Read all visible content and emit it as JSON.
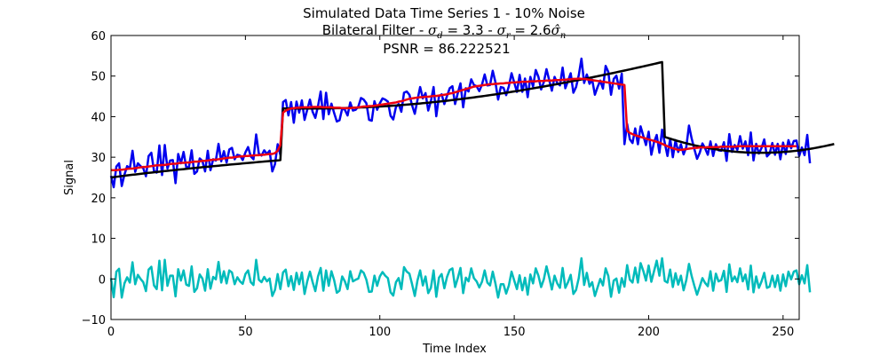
{
  "chart_data": {
    "type": "line",
    "title": "Simulated Data Time Series 1 - 10% Noise",
    "subtitle": {
      "prefix": "Bilateral Filter - ",
      "sigma_d_symbol": "σ",
      "sigma_d_sub": "d",
      "sigma_d_value": " = 3.3 - ",
      "sigma_r_symbol": "σ",
      "sigma_r_sub": "r",
      "sigma_r_value": " = 2.6",
      "sigma_n_symbol": "σ̂",
      "sigma_n_sub": "n"
    },
    "annotation": "PSNR = 86.222521",
    "xlabel": "Time Index",
    "ylabel": "Signal",
    "xlim": [
      0,
      256
    ],
    "ylim": [
      -10,
      60
    ],
    "xticks": [
      "0",
      "50",
      "100",
      "150",
      "200",
      "250"
    ],
    "yticks": [
      "−10",
      "0",
      "10",
      "20",
      "30",
      "40",
      "50",
      "60"
    ],
    "grid": false,
    "series": [
      {
        "color": "#0000ee",
        "role": "noisy",
        "values": [
          25.4,
          22.6,
          27.7,
          28.5,
          22.9,
          25.7,
          27.8,
          27.2,
          31.6,
          26.4,
          28.5,
          27.8,
          27.3,
          25.3,
          30.3,
          31.1,
          26.6,
          26.2,
          32.9,
          25.6,
          33.0,
          27.2,
          29.2,
          29.3,
          23.6,
          30.8,
          28.5,
          31.3,
          27.5,
          27.6,
          31.7,
          25.9,
          26.5,
          29.7,
          29.1,
          26.5,
          31.6,
          26.8,
          29.5,
          29.2,
          33.3,
          29.0,
          31.5,
          28.7,
          31.9,
          32.3,
          29.5,
          30.6,
          30.4,
          29.3,
          31.2,
          32.5,
          30.2,
          29.5,
          35.6,
          30.9,
          30.4,
          31.7,
          30.8,
          31.6,
          26.5,
          28.3,
          33.2,
          30.6,
          43.6,
          44.1,
          40.3,
          43.6,
          38.5,
          43.7,
          41.0,
          44.0,
          39.2,
          41.7,
          44.2,
          41.2,
          39.7,
          42.6,
          46.2,
          39.4,
          45.9,
          40.6,
          43.2,
          40.9,
          38.8,
          39.1,
          42.0,
          41.7,
          40.3,
          43.5,
          41.5,
          41.7,
          42.5,
          44.6,
          44.2,
          43.3,
          39.2,
          39.0,
          43.8,
          41.7,
          43.3,
          44.5,
          44.2,
          43.7,
          40.2,
          39.3,
          42.4,
          43.1,
          41.2,
          45.9,
          46.2,
          45.4,
          42.8,
          40.7,
          44.1,
          47.3,
          44.5,
          45.8,
          41.5,
          43.8,
          47.3,
          40.1,
          45.0,
          45.5,
          43.1,
          45.1,
          47.0,
          47.5,
          43.1,
          45.8,
          48.2,
          42.3,
          47.0,
          46.2,
          49.2,
          47.8,
          47.5,
          46.3,
          47.9,
          50.4,
          47.7,
          47.8,
          51.3,
          48.5,
          44.2,
          47.3,
          47.1,
          45.3,
          47.5,
          50.7,
          48.4,
          46.1,
          50.3,
          46.1,
          49.4,
          44.8,
          49.8,
          47.4,
          51.5,
          49.8,
          46.7,
          48.5,
          51.7,
          49.0,
          46.4,
          49.8,
          48.3,
          47.7,
          52.1,
          47.0,
          48.8,
          50.7,
          45.9,
          47.3,
          50.2,
          54.3,
          48.3,
          50.4,
          48.1,
          49.1,
          45.4,
          47.3,
          48.9,
          46.9,
          52.5,
          51.0,
          45.4,
          49.3,
          50.1,
          46.9,
          50.6,
          33.2,
          38.2,
          34.4,
          33.5,
          37.1,
          33.2,
          37.6,
          35.3,
          33.0,
          36.3,
          30.6,
          33.7,
          35.5,
          31.1,
          36.8,
          33.5,
          30.3,
          34.5,
          30.0,
          34.2,
          31.3,
          33.2,
          30.7,
          32.5,
          37.8,
          34.6,
          32.0,
          29.6,
          31.1,
          33.4,
          32.2,
          30.6,
          33.9,
          30.3,
          33.2,
          31.7,
          31.6,
          33.7,
          29.1,
          35.7,
          31.3,
          33.0,
          31.8,
          35.2,
          32.1,
          33.9,
          30.5,
          36.1,
          29.2,
          33.3,
          30.9,
          32.3,
          34.4,
          30.2,
          30.9,
          33.5,
          30.6,
          33.3,
          29.5,
          33.6,
          30.8,
          34.2,
          32.2,
          34.0,
          34.1,
          30.3,
          32.4,
          30.5,
          35.5,
          28.5
        ]
      },
      {
        "color": "#000000",
        "role": "true",
        "values": [
          25.0,
          25.09,
          25.18,
          25.26,
          25.35,
          25.43,
          25.51,
          25.59,
          25.68,
          25.75,
          25.83,
          25.91,
          25.99,
          26.06,
          26.14,
          26.21,
          26.29,
          26.36,
          26.43,
          26.5,
          26.58,
          26.65,
          26.72,
          26.79,
          26.86,
          26.93,
          27.0,
          27.06,
          27.13,
          27.2,
          27.27,
          27.33,
          27.4,
          27.46,
          27.53,
          27.59,
          27.66,
          27.72,
          27.78,
          27.85,
          27.91,
          27.97,
          28.03,
          28.1,
          28.16,
          28.22,
          28.28,
          28.34,
          28.4,
          28.46,
          28.52,
          28.58,
          28.64,
          28.7,
          28.76,
          28.82,
          28.87,
          28.93,
          28.99,
          29.05,
          29.11,
          29.16,
          29.22,
          29.28,
          42.0,
          42.0,
          42.0,
          42.0,
          42.0,
          42.0,
          42.0,
          42.0,
          42.0,
          42.0,
          42.0,
          42.01,
          42.01,
          42.01,
          42.02,
          42.03,
          42.03,
          42.04,
          42.05,
          42.07,
          42.08,
          42.09,
          42.11,
          42.13,
          42.15,
          42.17,
          42.19,
          42.21,
          42.24,
          42.27,
          42.29,
          42.32,
          42.36,
          42.39,
          42.42,
          42.46,
          42.5,
          42.54,
          42.58,
          42.62,
          42.67,
          42.71,
          42.76,
          42.81,
          42.86,
          42.91,
          42.96,
          43.02,
          43.08,
          43.13,
          43.19,
          43.25,
          43.31,
          43.38,
          43.44,
          43.51,
          43.58,
          43.64,
          43.71,
          43.79,
          43.86,
          43.93,
          44.01,
          44.09,
          44.16,
          44.24,
          44.32,
          44.41,
          44.49,
          44.58,
          44.66,
          44.75,
          44.84,
          44.93,
          45.02,
          45.11,
          45.2,
          45.3,
          45.4,
          45.49,
          45.59,
          45.69,
          45.79,
          45.89,
          46.0,
          46.1,
          46.21,
          46.31,
          46.42,
          46.53,
          46.64,
          46.75,
          46.86,
          46.97,
          47.09,
          47.2,
          47.32,
          47.43,
          47.55,
          47.67,
          47.79,
          47.91,
          48.03,
          48.15,
          48.28,
          48.4,
          48.53,
          48.65,
          48.78,
          48.91,
          49.04,
          49.17,
          49.3,
          49.43,
          49.56,
          49.69,
          49.83,
          49.96,
          50.1,
          50.24,
          50.38,
          50.51,
          50.65,
          50.79,
          50.94,
          51.08,
          51.22,
          51.36,
          51.51,
          51.65,
          51.8,
          51.95,
          52.09,
          52.24,
          52.39,
          52.54,
          52.69,
          52.84,
          52.99,
          53.14,
          53.3,
          53.45,
          35.0,
          34.78,
          34.57,
          34.36,
          34.16,
          33.97,
          33.78,
          33.6,
          33.43,
          33.26,
          33.1,
          32.95,
          32.8,
          32.66,
          32.52,
          32.39,
          32.27,
          32.15,
          32.04,
          31.94,
          31.84,
          31.75,
          31.66,
          31.58,
          31.51,
          31.44,
          31.38,
          31.32,
          31.27,
          31.23,
          31.19,
          31.16,
          31.13,
          31.11,
          31.1,
          31.09,
          31.09,
          31.09,
          31.1,
          31.12,
          31.14,
          31.16,
          31.2,
          31.24,
          31.28,
          31.33,
          31.39,
          31.45,
          31.52,
          31.6,
          31.68,
          31.77,
          31.86,
          31.96,
          32.06,
          32.17,
          32.29,
          32.41,
          32.54,
          32.67,
          32.81,
          32.95,
          33.1,
          33.26
        ]
      },
      {
        "color": "#ee0011",
        "role": "filtered",
        "values": [
          26.8,
          26.8,
          26.8,
          26.9,
          26.9,
          27.0,
          27.1,
          27.2,
          27.2,
          27.3,
          27.4,
          27.5,
          27.6,
          27.6,
          27.7,
          27.8,
          27.9,
          28.0,
          28.0,
          28.1,
          28.1,
          28.2,
          28.3,
          28.4,
          28.4,
          28.5,
          28.6,
          28.6,
          28.7,
          28.7,
          28.8,
          28.9,
          28.9,
          29.0,
          29.1,
          29.1,
          29.2,
          29.3,
          29.4,
          29.4,
          29.5,
          29.6,
          29.7,
          29.8,
          29.9,
          29.9,
          30.0,
          30.1,
          30.2,
          30.2,
          30.3,
          30.3,
          30.4,
          30.4,
          30.5,
          30.5,
          30.6,
          30.6,
          30.7,
          30.8,
          30.8,
          31.0,
          31.6,
          33.0,
          41.0,
          41.5,
          41.8,
          42.0,
          42.1,
          42.2,
          42.2,
          42.3,
          42.3,
          42.3,
          42.3,
          42.4,
          42.4,
          42.4,
          42.4,
          42.3,
          42.3,
          42.3,
          42.3,
          42.2,
          42.2,
          42.2,
          42.1,
          42.1,
          42.1,
          42.1,
          42.2,
          42.2,
          42.3,
          42.4,
          42.5,
          42.5,
          42.6,
          42.6,
          42.7,
          42.8,
          42.9,
          43.0,
          43.1,
          43.2,
          43.3,
          43.4,
          43.5,
          43.7,
          43.8,
          44.0,
          44.2,
          44.4,
          44.5,
          44.6,
          44.7,
          44.8,
          44.8,
          44.9,
          44.9,
          45.0,
          45.1,
          45.1,
          45.2,
          45.3,
          45.4,
          45.5,
          45.7,
          45.8,
          46.0,
          46.2,
          46.4,
          46.6,
          46.8,
          47.0,
          47.2,
          47.4,
          47.5,
          47.6,
          47.7,
          47.8,
          47.9,
          48.0,
          48.0,
          48.1,
          48.1,
          48.2,
          48.2,
          48.3,
          48.3,
          48.4,
          48.4,
          48.5,
          48.5,
          48.6,
          48.6,
          48.6,
          48.7,
          48.7,
          48.7,
          48.8,
          48.8,
          48.8,
          48.9,
          48.9,
          48.9,
          49.0,
          49.0,
          49.0,
          49.1,
          49.1,
          49.2,
          49.2,
          49.3,
          49.3,
          49.4,
          49.3,
          49.3,
          49.2,
          49.1,
          49.0,
          48.9,
          48.8,
          48.7,
          48.6,
          48.5,
          48.4,
          48.3,
          48.2,
          48.1,
          48.0,
          47.9,
          47.8,
          36.5,
          36.0,
          35.7,
          35.4,
          35.2,
          35.0,
          34.8,
          34.6,
          34.4,
          34.2,
          34.0,
          33.8,
          33.6,
          33.3,
          33.0,
          32.7,
          32.4,
          32.2,
          32.0,
          31.8,
          31.8,
          31.9,
          32.0,
          32.1,
          32.2,
          32.3,
          32.3,
          32.4,
          32.4,
          32.4,
          32.5,
          32.5,
          32.5,
          32.5,
          32.5,
          32.6,
          32.6,
          32.6,
          32.6,
          32.6,
          32.6,
          32.7,
          32.7,
          32.7,
          32.7,
          32.7,
          32.7,
          32.7,
          32.7,
          32.7,
          32.7,
          32.7,
          32.7,
          32.7,
          32.7,
          32.7,
          32.7,
          32.7,
          32.7,
          32.7,
          32.7,
          32.7,
          32.7,
          32.7
        ]
      },
      {
        "color": "#00bbbb",
        "role": "residual",
        "values": [
          0.2,
          -4.5,
          1.8,
          2.5,
          -4.6,
          -1.1,
          0.4,
          -0.9,
          4.1,
          -1.3,
          1.0,
          0.0,
          -0.8,
          -3.0,
          2.3,
          3.0,
          -1.6,
          -2.5,
          4.5,
          -2.8,
          4.7,
          -1.7,
          0.8,
          0.8,
          -4.3,
          2.4,
          -0.4,
          2.1,
          -1.4,
          -1.7,
          3.1,
          -3.2,
          -2.3,
          1.1,
          0.1,
          -2.9,
          2.4,
          -2.4,
          0.5,
          -0.1,
          4.2,
          -0.9,
          1.9,
          -1.1,
          2.1,
          1.6,
          -1.3,
          0.4,
          -0.6,
          -1.2,
          1.2,
          2.1,
          -0.8,
          -1.5,
          4.7,
          -0.2,
          -0.8,
          0.5,
          -0.6,
          0.1,
          -4.2,
          -2.7,
          1.2,
          -2.5,
          1.6,
          2.3,
          -1.8,
          0.7,
          -2.7,
          1.5,
          -1.3,
          1.6,
          -3.7,
          -0.6,
          1.8,
          -0.8,
          -3.0,
          0.6,
          2.7,
          -2.9,
          2.1,
          -1.7,
          1.9,
          -0.3,
          -3.4,
          -2.9,
          0.6,
          -0.6,
          -2.5,
          1.9,
          -0.6,
          -0.2,
          0.1,
          2.1,
          1.5,
          -0.2,
          -3.2,
          -3.1,
          0.8,
          -1.7,
          0.6,
          1.7,
          0.8,
          0.2,
          -3.3,
          -4.1,
          -0.8,
          0.2,
          -2.5,
          2.9,
          1.8,
          1.3,
          -1.3,
          -4.2,
          -0.4,
          2.1,
          -1.6,
          0.6,
          -3.5,
          -2.2,
          2.1,
          -4.4,
          0.3,
          1.2,
          -2.3,
          0.5,
          2.2,
          2.6,
          -2.0,
          0.2,
          2.7,
          -3.5,
          0.3,
          -0.6,
          2.6,
          0.2,
          -0.6,
          -2.1,
          -0.7,
          2.1,
          -0.9,
          -1.6,
          1.8,
          -1.1,
          -4.6,
          -1.3,
          -1.3,
          -3.6,
          -1.6,
          1.8,
          -0.4,
          -2.5,
          0.9,
          -2.8,
          0.3,
          -3.9,
          1.1,
          -1.1,
          2.6,
          0.8,
          -2.0,
          -0.1,
          3.1,
          0.4,
          -2.6,
          0.8,
          -1.1,
          -2.2,
          2.7,
          -2.2,
          -0.8,
          1.0,
          -3.7,
          -2.7,
          0.2,
          5.1,
          -1.5,
          1.5,
          -1.9,
          -0.8,
          -4.2,
          -2.1,
          0.0,
          -1.6,
          2.6,
          0.7,
          -4.4,
          -0.4,
          0.1,
          -3.4,
          0.2,
          -1.9,
          3.4,
          -0.2,
          -0.9,
          2.8,
          -0.9,
          3.9,
          2.0,
          -0.4,
          3.3,
          -0.7,
          1.9,
          4.5,
          0.8,
          5.1,
          -0.5,
          -0.9,
          2.3,
          -2.0,
          1.4,
          -1.4,
          0.8,
          -2.8,
          -0.3,
          3.7,
          0.7,
          -1.7,
          -3.9,
          -1.9,
          0.2,
          -1.0,
          -1.8,
          1.9,
          -2.9,
          1.3,
          -0.6,
          -0.3,
          2.0,
          -3.2,
          3.6,
          -0.6,
          0.6,
          -0.8,
          2.6,
          -0.6,
          1.1,
          -2.6,
          3.3,
          -3.3,
          0.6,
          -2.2,
          -0.6,
          1.5,
          -2.2,
          -1.9,
          0.8,
          -2.0,
          0.9,
          -2.9,
          1.1,
          -1.8,
          1.8,
          -0.1,
          1.8,
          2.1,
          -1.3,
          0.9,
          -1.1,
          3.4,
          -3.3
        ]
      }
    ]
  }
}
